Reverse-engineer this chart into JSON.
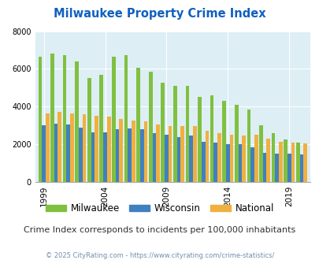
{
  "title": "Milwaukee Property Crime Index",
  "years": [
    1999,
    2000,
    2001,
    2002,
    2003,
    2004,
    2005,
    2006,
    2007,
    2008,
    2009,
    2010,
    2011,
    2012,
    2013,
    2014,
    2015,
    2016,
    2017,
    2018,
    2019,
    2020
  ],
  "milwaukee": [
    6650,
    6800,
    6750,
    6400,
    5500,
    5700,
    6650,
    6750,
    6050,
    5850,
    5250,
    5100,
    5100,
    4500,
    4600,
    4300,
    4100,
    3850,
    3000,
    2600,
    2250,
    2100
  ],
  "wisconsin": [
    3000,
    3100,
    3050,
    2900,
    2650,
    2650,
    2800,
    2850,
    2800,
    2600,
    2500,
    2400,
    2450,
    2150,
    2100,
    2000,
    2000,
    1850,
    1550,
    1500,
    1500,
    1480
  ],
  "national": [
    3650,
    3700,
    3650,
    3600,
    3500,
    3450,
    3350,
    3250,
    3200,
    3050,
    2950,
    2950,
    2950,
    2700,
    2600,
    2500,
    2480,
    2500,
    2300,
    2150,
    2100,
    2050
  ],
  "milwaukee_color": "#80c040",
  "wisconsin_color": "#4080c0",
  "national_color": "#f0b040",
  "bg_color": "#ddeef5",
  "ylim": [
    0,
    8000
  ],
  "yticks": [
    0,
    2000,
    4000,
    6000,
    8000
  ],
  "xtick_years": [
    1999,
    2004,
    2009,
    2014,
    2019
  ],
  "subtitle": "Crime Index corresponds to incidents per 100,000 inhabitants",
  "footer": "© 2025 CityRating.com - https://www.cityrating.com/crime-statistics/",
  "title_color": "#1060c0",
  "subtitle_color": "#303030",
  "footer_color": "#7090b0"
}
